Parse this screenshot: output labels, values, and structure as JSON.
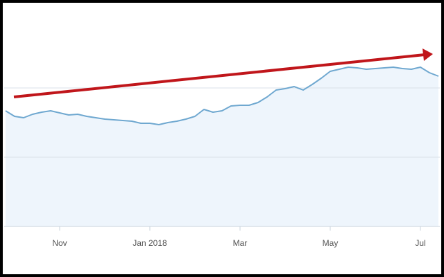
{
  "chart_data": {
    "type": "area",
    "categories": [
      null,
      null,
      null,
      null,
      null,
      null,
      "Nov",
      null,
      null,
      null,
      null,
      null,
      null,
      null,
      null,
      null,
      "Jan 2018",
      null,
      null,
      null,
      null,
      null,
      null,
      null,
      null,
      null,
      "Mar",
      null,
      null,
      null,
      null,
      null,
      null,
      null,
      null,
      null,
      "May",
      null,
      null,
      null,
      null,
      null,
      null,
      null,
      null,
      null,
      "Jul",
      null,
      null
    ],
    "values": [
      1.67,
      1.59,
      1.57,
      1.62,
      1.65,
      1.67,
      1.64,
      1.61,
      1.62,
      1.59,
      1.57,
      1.55,
      1.54,
      1.53,
      1.52,
      1.49,
      1.49,
      1.47,
      1.5,
      1.52,
      1.55,
      1.59,
      1.69,
      1.65,
      1.67,
      1.74,
      1.75,
      1.75,
      1.79,
      1.87,
      1.97,
      1.99,
      2.02,
      1.97,
      2.05,
      2.14,
      2.24,
      2.27,
      2.3,
      2.29,
      2.27,
      2.28,
      2.29,
      2.3,
      2.28,
      2.27,
      2.3,
      2.22,
      2.17
    ],
    "color": "#6fa8d0",
    "ylim": [
      0,
      3
    ],
    "yticks": [
      0,
      1,
      2
    ],
    "grid": true
  }
}
